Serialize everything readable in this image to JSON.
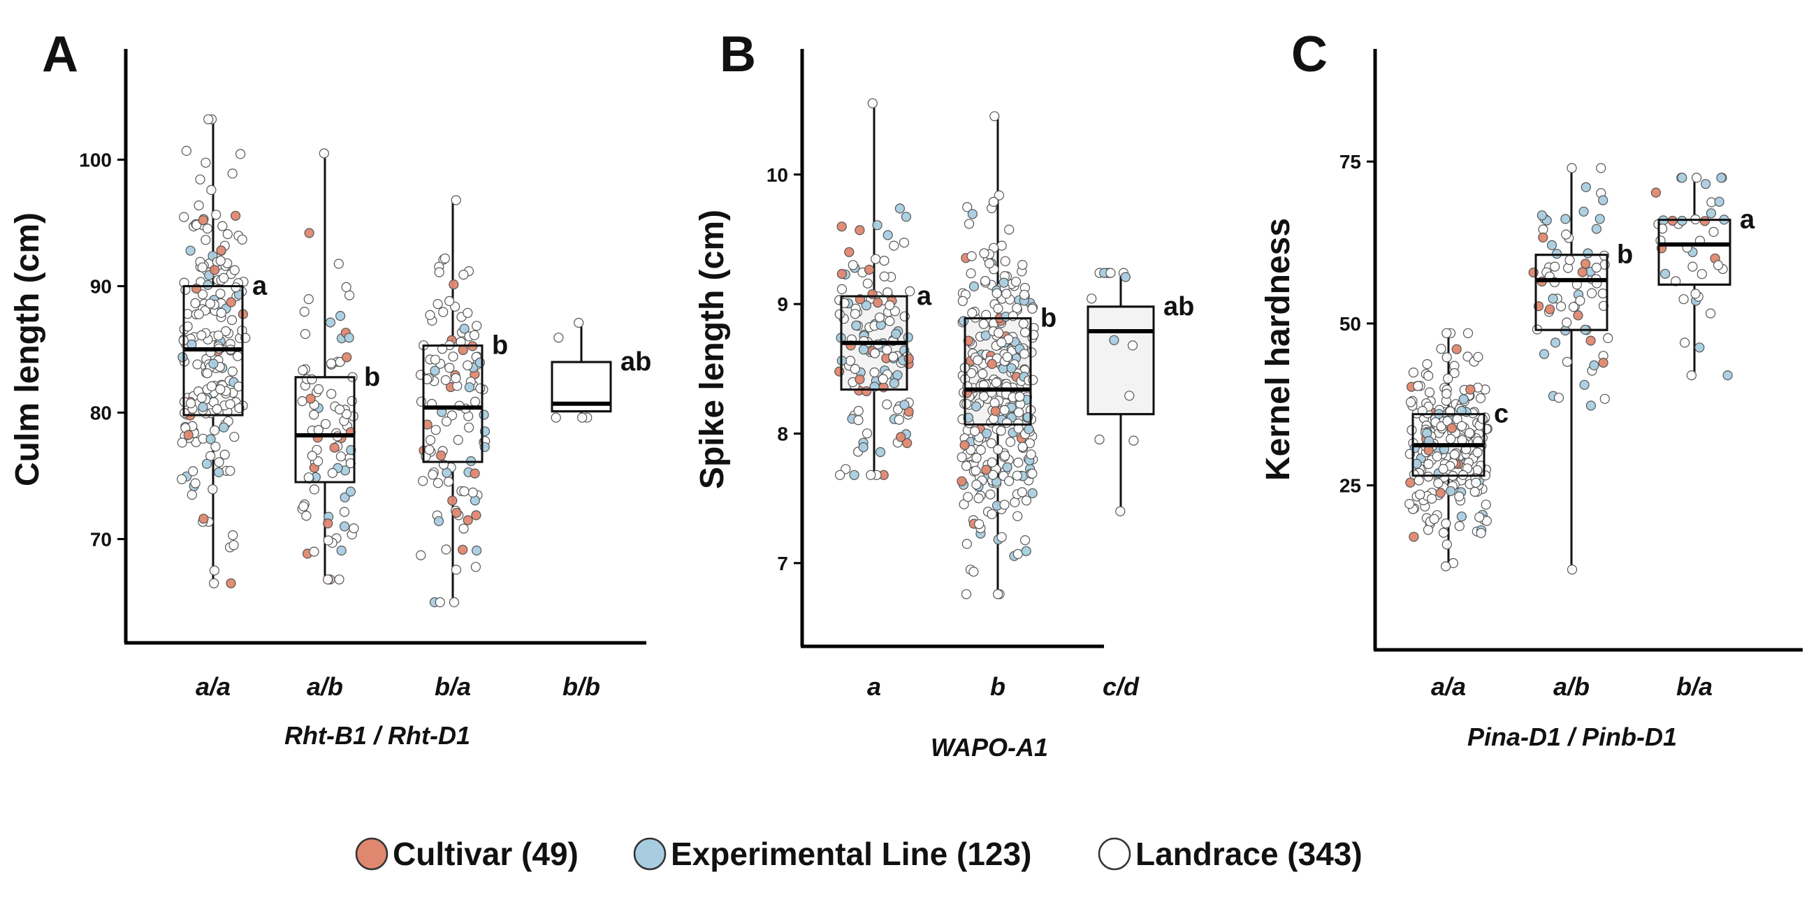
{
  "colors": {
    "Cultivar": "#e0876f",
    "Experimental Line": "#a9cde0",
    "Landrace": "#ffffff",
    "box_fill_A": "#ffffff",
    "box_fill_B": "#f3f3f3",
    "box_fill_C": "#ffffff",
    "axis": "#000000"
  },
  "legend": [
    {
      "key": "Cultivar",
      "label": "Cultivar (49)"
    },
    {
      "key": "Experimental Line",
      "label": "Experimental Line (123)"
    },
    {
      "key": "Landrace",
      "label": "Landrace (343)"
    }
  ],
  "chart_data": [
    {
      "type": "box",
      "panel": "A",
      "xlabel": "Rht-B1 / Rht-D1",
      "ylabel": "Culm length (cm)",
      "ylim": [
        64,
        106
      ],
      "yticks": [
        70,
        80,
        90,
        100
      ],
      "categories": [
        "a/a",
        "a/b",
        "b/a",
        "b/b"
      ],
      "boxes": [
        {
          "category": "a/a",
          "whisker_low": 66.5,
          "q1": 79.8,
          "median": 85.0,
          "q3": 90.0,
          "whisker_high": 103.2,
          "letter": "a",
          "n": {
            "Cultivar": 14,
            "Experimental Line": 22,
            "Landrace": 170
          }
        },
        {
          "category": "a/b",
          "whisker_low": 66.8,
          "q1": 74.5,
          "median": 78.2,
          "q3": 82.8,
          "whisker_high": 100.5,
          "letter": "b",
          "n": {
            "Cultivar": 12,
            "Experimental Line": 14,
            "Landrace": 60
          }
        },
        {
          "category": "b/a",
          "whisker_low": 65.0,
          "q1": 76.1,
          "median": 80.4,
          "q3": 85.3,
          "whisker_high": 96.8,
          "letter": "b",
          "n": {
            "Cultivar": 16,
            "Experimental Line": 16,
            "Landrace": 80
          }
        },
        {
          "category": "b/b",
          "whisker_low": 79.6,
          "q1": 80.1,
          "median": 80.7,
          "q3": 84.0,
          "whisker_high": 87.1,
          "letter": "ab",
          "n": {
            "Cultivar": 0,
            "Experimental Line": 0,
            "Landrace": 3
          }
        }
      ]
    },
    {
      "type": "box",
      "panel": "B",
      "xlabel": "WAPO-A1",
      "ylabel": "Spike length (cm)",
      "ylim": [
        6.6,
        10.7
      ],
      "yticks": [
        7,
        8,
        9,
        10
      ],
      "categories": [
        "a",
        "b",
        "c/d"
      ],
      "boxes": [
        {
          "category": "a",
          "whisker_low": 7.68,
          "q1": 8.34,
          "median": 8.7,
          "q3": 9.06,
          "whisker_high": 10.55,
          "letter": "a",
          "n": {
            "Cultivar": 24,
            "Experimental Line": 40,
            "Landrace": 70
          }
        },
        {
          "category": "b",
          "whisker_low": 6.76,
          "q1": 8.07,
          "median": 8.34,
          "q3": 8.89,
          "whisker_high": 10.45,
          "letter": "b",
          "n": {
            "Cultivar": 18,
            "Experimental Line": 50,
            "Landrace": 260
          }
        },
        {
          "category": "c/d",
          "whisker_low": 7.4,
          "q1": 8.15,
          "median": 8.79,
          "q3": 8.98,
          "whisker_high": 9.24,
          "letter": "ab",
          "n": {
            "Cultivar": 0,
            "Experimental Line": 3,
            "Landrace": 9
          }
        }
      ]
    },
    {
      "type": "box",
      "panel": "C",
      "xlabel": "Pina-D1 / Pinb-D1",
      "ylabel": "Kernel hardness",
      "ylim": [
        5,
        87
      ],
      "yticks": [
        25,
        50,
        75
      ],
      "categories": [
        "a/a",
        "a/b",
        "b/a"
      ],
      "boxes": [
        {
          "category": "a/a",
          "whisker_low": 12.5,
          "q1": 26.5,
          "median": 31.2,
          "q3": 36.0,
          "whisker_high": 48.5,
          "letter": "c",
          "n": {
            "Cultivar": 14,
            "Experimental Line": 26,
            "Landrace": 190
          }
        },
        {
          "category": "a/b",
          "whisker_low": 12.0,
          "q1": 49.0,
          "median": 56.7,
          "q3": 60.6,
          "whisker_high": 74.0,
          "letter": "b",
          "n": {
            "Cultivar": 10,
            "Experimental Line": 22,
            "Landrace": 38
          }
        },
        {
          "category": "b/a",
          "whisker_low": 42.0,
          "q1": 56.0,
          "median": 62.2,
          "q3": 66.0,
          "whisker_high": 72.5,
          "letter": "a",
          "n": {
            "Cultivar": 5,
            "Experimental Line": 14,
            "Landrace": 20
          }
        }
      ]
    }
  ]
}
